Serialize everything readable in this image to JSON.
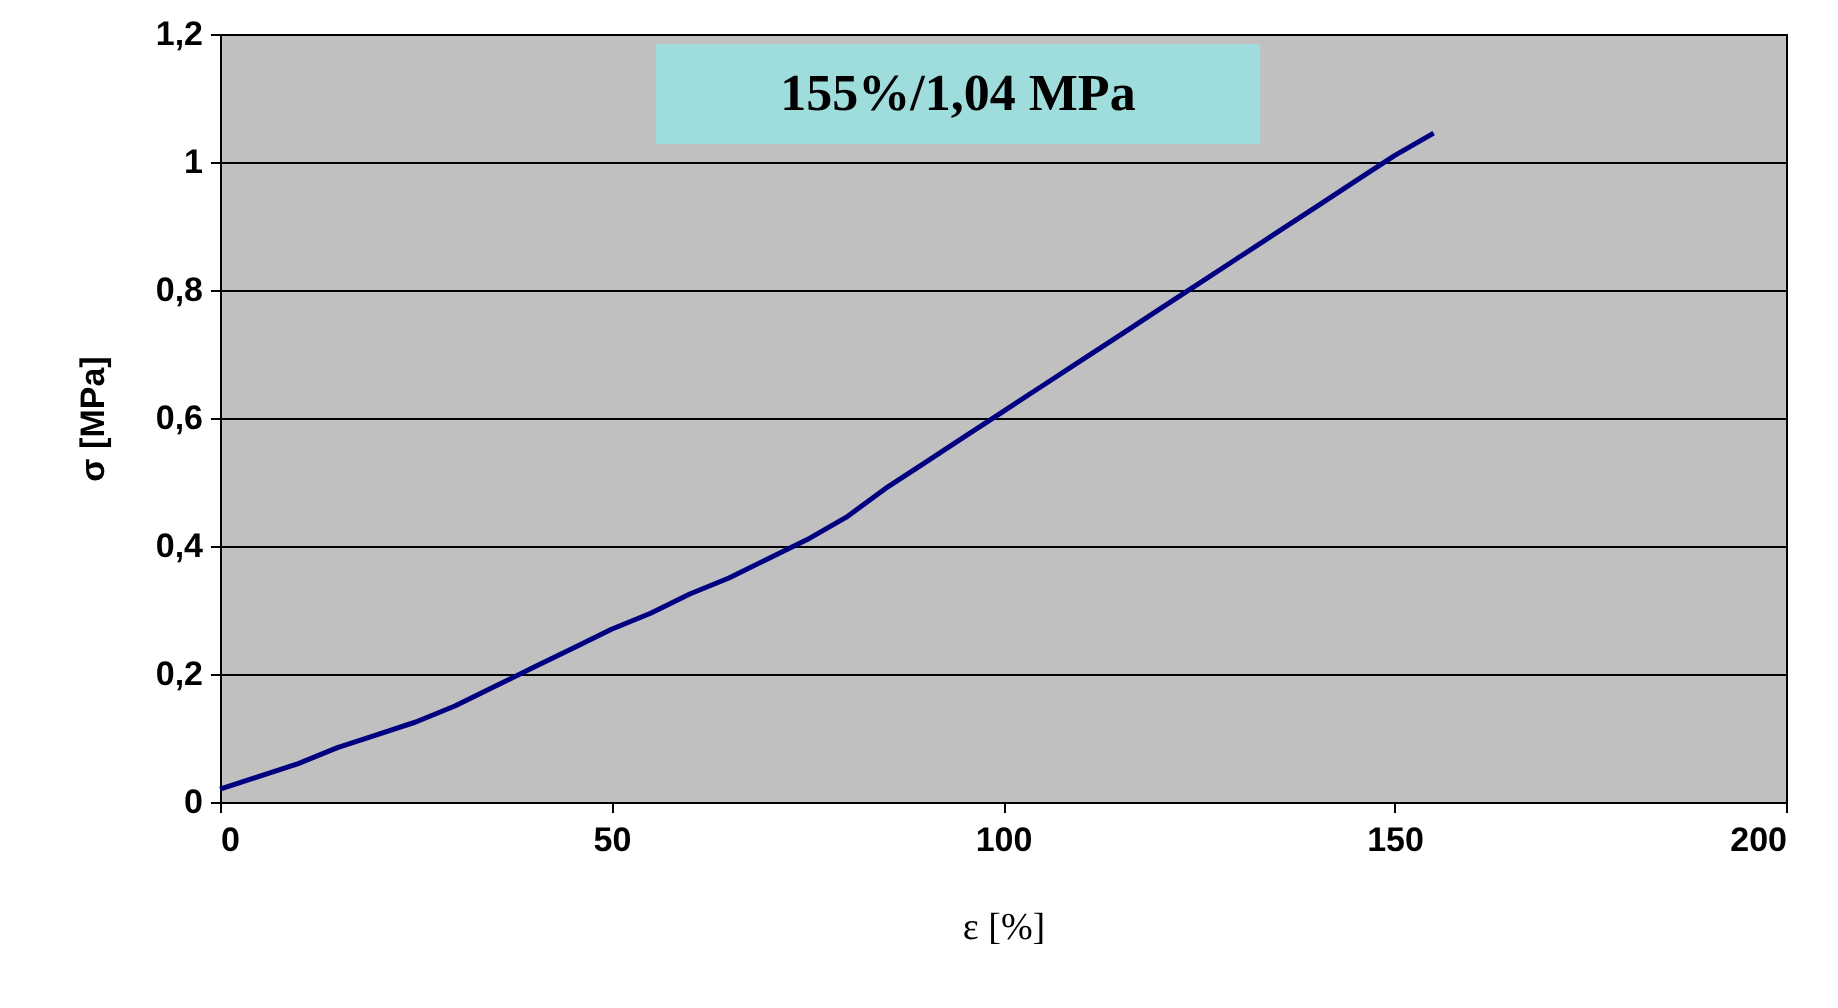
{
  "chart_data": {
    "type": "line",
    "xlabel": "ε [%]",
    "ylabel": "σ [MPa]",
    "annotations": [
      "155%/1,04 MPa"
    ],
    "series": [
      {
        "color": "#000080",
        "x": [
          0,
          5,
          10,
          15,
          20,
          25,
          30,
          35,
          40,
          45,
          50,
          55,
          60,
          65,
          70,
          75,
          80,
          85,
          90,
          95,
          100,
          105,
          110,
          115,
          120,
          125,
          130,
          135,
          140,
          145,
          150,
          155
        ],
        "values": [
          0.02,
          0.04,
          0.06,
          0.085,
          0.105,
          0.125,
          0.15,
          0.18,
          0.21,
          0.24,
          0.27,
          0.295,
          0.325,
          0.35,
          0.38,
          0.41,
          0.445,
          0.49,
          0.53,
          0.57,
          0.61,
          0.65,
          0.69,
          0.73,
          0.77,
          0.81,
          0.85,
          0.89,
          0.93,
          0.97,
          1.01,
          1.045
        ]
      }
    ],
    "xlim": [
      0,
      200
    ],
    "xticks": [
      0,
      50,
      100,
      150,
      200
    ],
    "ylim": [
      0,
      1.2
    ],
    "yticks": [
      0,
      {
        "value": 0.2,
        "label": "0,2"
      },
      {
        "value": 0.4,
        "label": "0,4"
      },
      {
        "value": 0.6,
        "label": "0,6"
      },
      {
        "value": 0.8,
        "label": "0,8"
      },
      1,
      {
        "value": 1.2,
        "label": "1,2"
      }
    ],
    "grid": "y",
    "marker": "none",
    "line_style": "solid"
  }
}
